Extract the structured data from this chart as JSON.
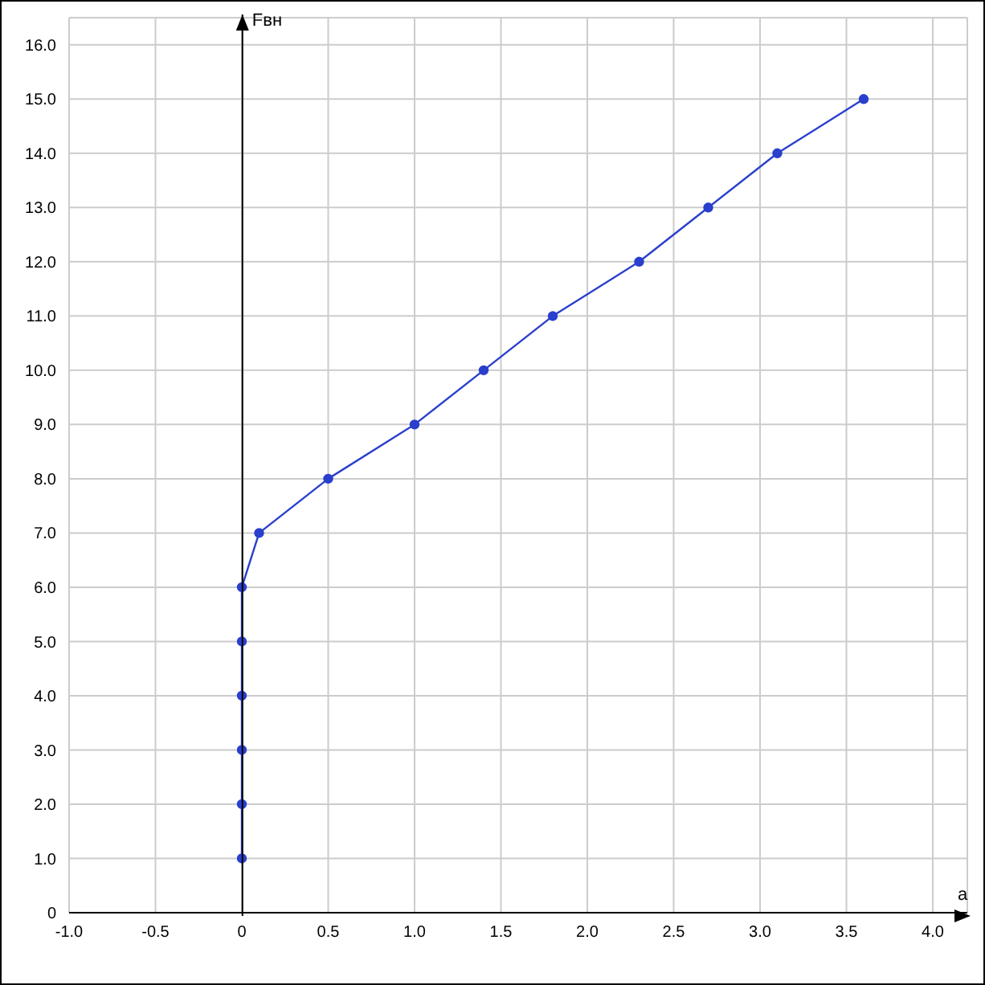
{
  "chart_data": {
    "type": "line",
    "xlabel": "a",
    "ylabel": "Fвн",
    "x": [
      0,
      0,
      0,
      0,
      0,
      0,
      0.1,
      0.5,
      1,
      1.4,
      1.8,
      2.3,
      2.7,
      3.1,
      3.6
    ],
    "series": [
      {
        "color": "#2a3fcc",
        "values": [
          1,
          2,
          3,
          4,
          5,
          6,
          7,
          8,
          9,
          10,
          11,
          12,
          13,
          14,
          15
        ]
      }
    ],
    "xlim": [
      -1,
      4.2
    ],
    "ylim": [
      0,
      16.5
    ],
    "xticks": [
      {
        "value": -1,
        "label": "-1.0"
      },
      {
        "value": -0.5,
        "label": "-0.5"
      },
      0,
      {
        "value": 0.5,
        "label": "0.5"
      },
      {
        "value": 1,
        "label": "1.0"
      },
      {
        "value": 1.5,
        "label": "1.5"
      },
      {
        "value": 2,
        "label": "2.0"
      },
      {
        "value": 2.5,
        "label": "2.5"
      },
      {
        "value": 3,
        "label": "3.0"
      },
      {
        "value": 3.5,
        "label": "3.5"
      },
      {
        "value": 4,
        "label": "4.0"
      }
    ],
    "yticks": [
      0,
      {
        "value": 1,
        "label": "1.0"
      },
      {
        "value": 2,
        "label": "2.0"
      },
      {
        "value": 3,
        "label": "3.0"
      },
      {
        "value": 4,
        "label": "4.0"
      },
      {
        "value": 5,
        "label": "5.0"
      },
      {
        "value": 6,
        "label": "6.0"
      },
      {
        "value": 7,
        "label": "7.0"
      },
      {
        "value": 8,
        "label": "8.0"
      },
      {
        "value": 9,
        "label": "9.0"
      },
      {
        "value": 10,
        "label": "10.0"
      },
      {
        "value": 11,
        "label": "11.0"
      },
      {
        "value": 12,
        "label": "12.0"
      },
      {
        "value": 13,
        "label": "13.0"
      },
      {
        "value": 14,
        "label": "14.0"
      },
      {
        "value": 15,
        "label": "15.0"
      },
      {
        "value": 16,
        "label": "16.0"
      }
    ],
    "grid": true,
    "marker": "circle",
    "line_style": "solid",
    "legend": false
  }
}
